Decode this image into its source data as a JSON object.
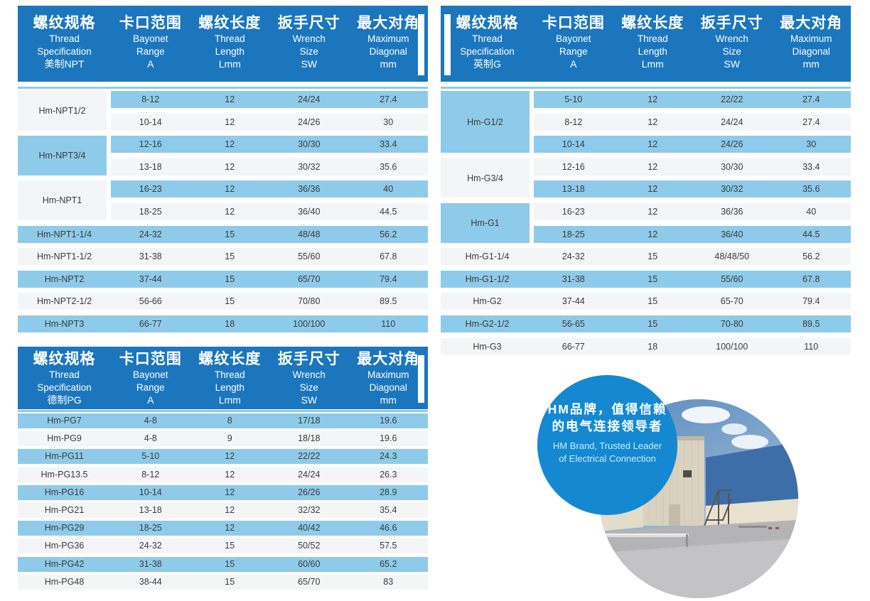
{
  "colors": {
    "header_blue": "#1b76bd",
    "row_blue": "#8ecbea",
    "row_gray": "#f4f5f7",
    "badge_blue": "#1489d1",
    "text_dark": "#3a3a3a"
  },
  "header_col1": {
    "cn": "螺纹规格",
    "en1": "Thread",
    "en2": "Specification"
  },
  "data_columns": [
    {
      "cn": "卡口范围",
      "en1": "Bayonet",
      "en2": "Range",
      "sub": "A"
    },
    {
      "cn": "螺纹长度",
      "en1": "Thread",
      "en2": "Length",
      "sub": "Lmm"
    },
    {
      "cn": "扳手尺寸",
      "en1": "Wrench",
      "en2": "Size",
      "sub": "SW"
    },
    {
      "cn": "最大对角",
      "en1": "Maximum",
      "en2": "Diagonal",
      "sub": "mm"
    }
  ],
  "tables": [
    {
      "id": "npt",
      "col1_sub": "美制NPT",
      "rows": [
        {
          "type": "group",
          "spec": "Hm-NPT1/2",
          "spec_bg": "gray",
          "rows": [
            {
              "bg": "blue",
              "vals": [
                "8-12",
                "12",
                "24/24",
                "27.4"
              ]
            },
            {
              "bg": "gray",
              "vals": [
                "10-14",
                "12",
                "24/26",
                "30"
              ]
            }
          ]
        },
        {
          "type": "group",
          "spec": "Hm-NPT3/4",
          "spec_bg": "blue",
          "rows": [
            {
              "bg": "blue",
              "vals": [
                "12-16",
                "12",
                "30/30",
                "33.4"
              ]
            },
            {
              "bg": "gray",
              "vals": [
                "13-18",
                "12",
                "30/32",
                "35.6"
              ]
            }
          ]
        },
        {
          "type": "group",
          "spec": "Hm-NPT1",
          "spec_bg": "gray",
          "rows": [
            {
              "bg": "blue",
              "vals": [
                "16-23",
                "12",
                "36/36",
                "40"
              ]
            },
            {
              "bg": "gray",
              "vals": [
                "18-25",
                "12",
                "36/40",
                "44.5"
              ]
            }
          ]
        },
        {
          "type": "single",
          "spec": "Hm-NPT1-1/4",
          "bg": "blue",
          "vals": [
            "24-32",
            "15",
            "48/48",
            "56.2"
          ]
        },
        {
          "type": "single",
          "spec": "Hm-NPT1-1/2",
          "bg": "gray",
          "vals": [
            "31-38",
            "15",
            "55/60",
            "67.8"
          ]
        },
        {
          "type": "single",
          "spec": "Hm-NPT2",
          "bg": "blue",
          "vals": [
            "37-44",
            "15",
            "65/70",
            "79.4"
          ]
        },
        {
          "type": "single",
          "spec": "Hm-NPT2-1/2",
          "bg": "gray",
          "vals": [
            "56-66",
            "15",
            "70/80",
            "89.5"
          ]
        },
        {
          "type": "single",
          "spec": "Hm-NPT3",
          "bg": "blue",
          "vals": [
            "66-77",
            "18",
            "100/100",
            "110"
          ]
        }
      ]
    },
    {
      "id": "g",
      "col1_sub": "英制G",
      "rows": [
        {
          "type": "group",
          "spec": "Hm-G1/2",
          "spec_bg": "blue",
          "rows": [
            {
              "bg": "blue",
              "vals": [
                "5-10",
                "12",
                "22/22",
                "27.4"
              ]
            },
            {
              "bg": "gray",
              "vals": [
                "8-12",
                "12",
                "24/24",
                "27.4"
              ]
            },
            {
              "bg": "blue",
              "vals": [
                "10-14",
                "12",
                "24/26",
                "30"
              ]
            }
          ]
        },
        {
          "type": "group",
          "spec": "Hm-G3/4",
          "spec_bg": "gray",
          "rows": [
            {
              "bg": "gray",
              "vals": [
                "12-16",
                "12",
                "30/30",
                "33.4"
              ]
            },
            {
              "bg": "blue",
              "vals": [
                "13-18",
                "12",
                "30/32",
                "35.6"
              ]
            }
          ]
        },
        {
          "type": "group",
          "spec": "Hm-G1",
          "spec_bg": "blue",
          "rows": [
            {
              "bg": "gray",
              "vals": [
                "16-23",
                "12",
                "36/36",
                "40"
              ]
            },
            {
              "bg": "blue",
              "vals": [
                "18-25",
                "12",
                "36/40",
                "44.5"
              ]
            }
          ]
        },
        {
          "type": "single",
          "spec": "Hm-G1-1/4",
          "bg": "gray",
          "vals": [
            "24-32",
            "15",
            "48/48/50",
            "56.2"
          ]
        },
        {
          "type": "single",
          "spec": "Hm-G1-1/2",
          "bg": "blue",
          "vals": [
            "31-38",
            "15",
            "55/60",
            "67.8"
          ]
        },
        {
          "type": "single",
          "spec": "Hm-G2",
          "bg": "gray",
          "vals": [
            "37-44",
            "15",
            "65-70",
            "79.4"
          ]
        },
        {
          "type": "single",
          "spec": "Hm-G2-1/2",
          "bg": "blue",
          "vals": [
            "56-65",
            "15",
            "70-80",
            "89.5"
          ]
        },
        {
          "type": "single",
          "spec": "Hm-G3",
          "bg": "gray",
          "vals": [
            "66-77",
            "18",
            "100/100",
            "110"
          ]
        }
      ]
    },
    {
      "id": "pg",
      "col1_sub": "德制PG",
      "rows": [
        {
          "type": "single",
          "spec": "Hm-PG7",
          "bg": "blue",
          "vals": [
            "4-8",
            "8",
            "17/18",
            "19.6"
          ]
        },
        {
          "type": "single",
          "spec": "Hm-PG9",
          "bg": "gray",
          "vals": [
            "4-8",
            "9",
            "18/18",
            "19.6"
          ]
        },
        {
          "type": "single",
          "spec": "Hm-PG11",
          "bg": "blue",
          "vals": [
            "5-10",
            "12",
            "22/22",
            "24.3"
          ]
        },
        {
          "type": "single",
          "spec": "Hm-PG13.5",
          "bg": "gray",
          "vals": [
            "8-12",
            "12",
            "24/24",
            "26.3"
          ]
        },
        {
          "type": "single",
          "spec": "Hm-PG16",
          "bg": "blue",
          "vals": [
            "10-14",
            "12",
            "26/26",
            "28.9"
          ]
        },
        {
          "type": "single",
          "spec": "Hm-PG21",
          "bg": "gray",
          "vals": [
            "13-18",
            "12",
            "32/32",
            "35.4"
          ]
        },
        {
          "type": "single",
          "spec": "Hm-PG29",
          "bg": "blue",
          "vals": [
            "18-25",
            "12",
            "40/42",
            "46.6"
          ]
        },
        {
          "type": "single",
          "spec": "Hm-PG36",
          "bg": "gray",
          "vals": [
            "24-32",
            "15",
            "50/52",
            "57.5"
          ]
        },
        {
          "type": "single",
          "spec": "Hm-PG42",
          "bg": "blue",
          "vals": [
            "31-38",
            "15",
            "60/60",
            "65.2"
          ]
        },
        {
          "type": "single",
          "spec": "Hm-PG48",
          "bg": "gray",
          "vals": [
            "38-44",
            "15",
            "65/70",
            "83"
          ]
        }
      ]
    }
  ],
  "badge": {
    "cn_line1": "HM品牌，值得信赖",
    "cn_line2": "的电气连接领导者",
    "en_line1": "HM Brand, Trusted Leader",
    "en_line2": "of Electrical Connection"
  }
}
